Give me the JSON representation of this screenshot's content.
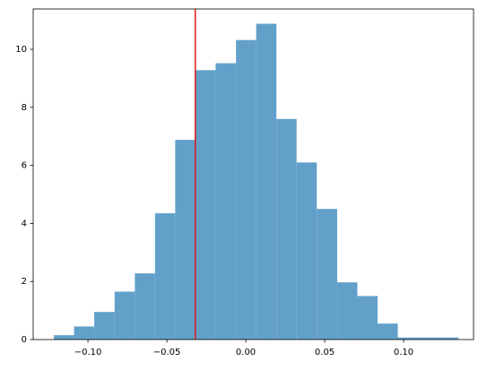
{
  "chart_data": {
    "type": "histogram",
    "bins": [
      -0.1216,
      -0.1088,
      -0.096,
      -0.0831,
      -0.0703,
      -0.0575,
      -0.0447,
      -0.0319,
      -0.0191,
      -0.0062,
      0.0066,
      0.0194,
      0.0322,
      0.045,
      0.0579,
      0.0707,
      0.0835,
      0.0963,
      0.1091,
      0.1219,
      0.1347
    ],
    "values": [
      0.15,
      0.45,
      0.95,
      1.65,
      2.28,
      4.35,
      6.88,
      9.28,
      9.52,
      10.32,
      10.88,
      7.6,
      6.1,
      4.5,
      1.97,
      1.5,
      0.55,
      0.07,
      0.07,
      0.07
    ],
    "color": "#62a0ca",
    "vline": {
      "x": -0.032,
      "color": "#e31a1c"
    },
    "xlim": [
      -0.1347,
      0.1443
    ],
    "ylim": [
      0,
      11.39
    ],
    "xticks": [
      {
        "value": -0.1,
        "label": "−0.10"
      },
      {
        "value": -0.05,
        "label": "−0.05"
      },
      {
        "value": 0,
        "label": "0.00"
      },
      {
        "value": 0.05,
        "label": "0.05"
      },
      {
        "value": 0.1,
        "label": "0.10"
      }
    ],
    "yticks": [
      0,
      2,
      4,
      6,
      8,
      10
    ],
    "grid": false
  }
}
